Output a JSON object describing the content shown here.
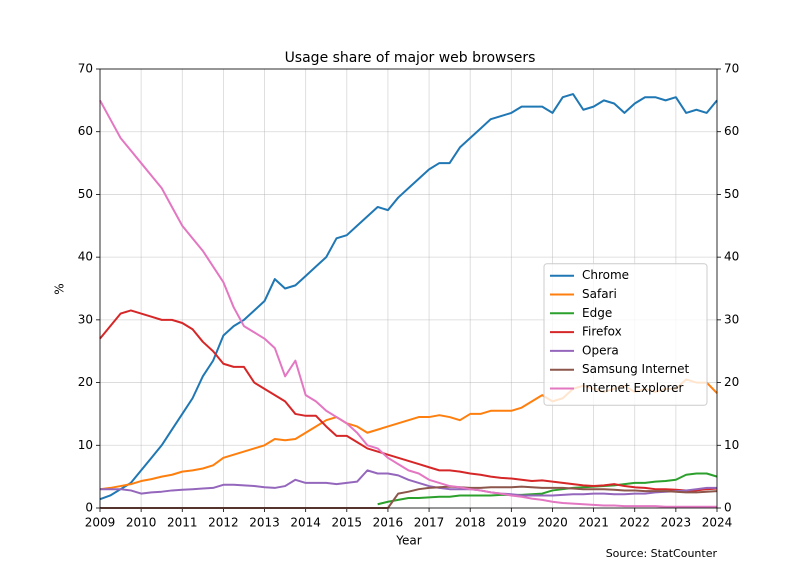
{
  "chart_data": {
    "type": "line",
    "title": "Usage share of major web browsers",
    "xlabel": "Year",
    "ylabel": "%",
    "source": "Source: StatCounter",
    "x": [
      2009,
      2009.25,
      2009.5,
      2009.75,
      2010,
      2010.25,
      2010.5,
      2010.75,
      2011,
      2011.25,
      2011.5,
      2011.75,
      2012,
      2012.25,
      2012.5,
      2012.75,
      2013,
      2013.25,
      2013.5,
      2013.75,
      2014,
      2014.25,
      2014.5,
      2014.75,
      2015,
      2015.25,
      2015.5,
      2015.75,
      2016,
      2016.25,
      2016.5,
      2016.75,
      2017,
      2017.25,
      2017.5,
      2017.75,
      2018,
      2018.25,
      2018.5,
      2018.75,
      2019,
      2019.25,
      2019.5,
      2019.75,
      2020,
      2020.25,
      2020.5,
      2020.75,
      2021,
      2021.25,
      2021.5,
      2021.75,
      2022,
      2022.25,
      2022.5,
      2022.75,
      2023,
      2023.25,
      2023.5,
      2023.75,
      2024
    ],
    "series": [
      {
        "name": "Chrome",
        "color": "#1f77b4",
        "values": [
          1.4,
          2,
          3,
          4,
          6,
          8,
          10,
          12.5,
          15,
          17.5,
          21,
          23.5,
          27.5,
          29,
          30,
          31.5,
          33,
          36.5,
          35,
          35.5,
          37,
          38.5,
          40,
          43,
          43.5,
          45,
          46.5,
          48,
          47.5,
          49.5,
          51,
          52.5,
          54,
          55,
          55,
          57.5,
          59,
          60.5,
          62,
          62.5,
          63,
          64,
          64,
          64,
          63,
          65.5,
          66,
          63.5,
          64,
          65,
          64.5,
          63,
          64.5,
          65.5,
          65.5,
          65,
          65.5,
          63,
          63.5,
          63,
          65
        ]
      },
      {
        "name": "Safari",
        "color": "#ff7f0e",
        "values": [
          3,
          3.2,
          3.5,
          3.8,
          4.3,
          4.6,
          5,
          5.3,
          5.8,
          6,
          6.3,
          6.8,
          8,
          8.5,
          9,
          9.5,
          10,
          11,
          10.8,
          11,
          12,
          13,
          14,
          14.5,
          13.5,
          13,
          12,
          12.5,
          13,
          13.5,
          14,
          14.5,
          14.5,
          14.8,
          14.5,
          14,
          15,
          15,
          15.5,
          15.5,
          15.5,
          16,
          17,
          18,
          17,
          17.5,
          19,
          19.5,
          19,
          18.5,
          19,
          19.5,
          18.5,
          19,
          18.5,
          19,
          19,
          20.5,
          20,
          20,
          18.3
        ]
      },
      {
        "name": "Edge",
        "color": "#2ca02c",
        "values": [
          null,
          null,
          null,
          null,
          null,
          null,
          null,
          null,
          null,
          null,
          null,
          null,
          null,
          null,
          null,
          null,
          null,
          null,
          null,
          null,
          null,
          null,
          null,
          null,
          null,
          null,
          null,
          0.6,
          1.0,
          1.3,
          1.6,
          1.6,
          1.7,
          1.8,
          1.8,
          2.0,
          2.0,
          2.0,
          2.0,
          2.1,
          2.1,
          2.1,
          2.2,
          2.3,
          2.8,
          3.0,
          3.2,
          3.3,
          3.4,
          3.5,
          3.6,
          3.8,
          4.0,
          4.0,
          4.2,
          4.3,
          4.5,
          5.3,
          5.5,
          5.5,
          5.0
        ]
      },
      {
        "name": "Firefox",
        "color": "#d62728",
        "values": [
          27,
          29,
          31,
          31.5,
          31,
          30.5,
          30,
          30,
          29.5,
          28.5,
          26.5,
          25,
          23,
          22.5,
          22.5,
          20,
          19,
          18,
          17,
          15,
          14.7,
          14.7,
          13,
          11.5,
          11.5,
          10.5,
          9.5,
          9,
          8.5,
          8,
          7.5,
          7,
          6.5,
          6,
          6,
          5.8,
          5.5,
          5.3,
          5,
          4.8,
          4.7,
          4.5,
          4.3,
          4.4,
          4.2,
          4.0,
          3.8,
          3.6,
          3.5,
          3.6,
          3.8,
          3.5,
          3.3,
          3.2,
          3.0,
          3.0,
          2.9,
          2.8,
          2.8,
          3.0,
          3.1
        ]
      },
      {
        "name": "Opera",
        "color": "#9467bd",
        "values": [
          3,
          3,
          3,
          2.8,
          2.3,
          2.5,
          2.6,
          2.8,
          2.9,
          3,
          3.1,
          3.2,
          3.7,
          3.7,
          3.6,
          3.5,
          3.3,
          3.2,
          3.5,
          4.5,
          4,
          4,
          4,
          3.8,
          4.0,
          4.2,
          6,
          5.5,
          5.5,
          5.2,
          4.5,
          4,
          3.5,
          3.2,
          3.0,
          3.0,
          3.0,
          2.8,
          2.5,
          2.3,
          2.2,
          2.0,
          2.0,
          2.0,
          2.0,
          2.1,
          2.2,
          2.2,
          2.3,
          2.3,
          2.2,
          2.2,
          2.3,
          2.3,
          2.5,
          2.6,
          2.7,
          2.8,
          3.0,
          3.2,
          3.2
        ]
      },
      {
        "name": "Samsung Internet",
        "color": "#8c564b",
        "values": [
          0,
          0,
          0,
          0,
          0,
          0,
          0,
          0,
          0,
          0,
          0,
          0,
          0,
          0,
          0,
          0,
          0,
          0,
          0,
          0,
          0,
          0,
          0,
          0,
          0,
          0,
          0,
          0,
          0,
          2.3,
          2.6,
          3.0,
          3.2,
          3.3,
          3.4,
          3.3,
          3.2,
          3.2,
          3.3,
          3.3,
          3.3,
          3.4,
          3.3,
          3.2,
          3.2,
          3.2,
          3.1,
          3.0,
          3.0,
          3.0,
          2.9,
          2.8,
          2.8,
          2.7,
          2.7,
          2.7,
          2.6,
          2.5,
          2.5,
          2.6,
          2.7
        ]
      },
      {
        "name": "Internet Explorer",
        "color": "#e377c2",
        "values": [
          65,
          62,
          59,
          57,
          55,
          53,
          51,
          48,
          45,
          43,
          41,
          38.5,
          36,
          32,
          29,
          28,
          27,
          25.5,
          21,
          23.5,
          18,
          17,
          15.5,
          14.5,
          13.5,
          12,
          10,
          9.5,
          8,
          7,
          6,
          5.5,
          4.5,
          4,
          3.5,
          3.3,
          3,
          2.8,
          2.5,
          2.3,
          2,
          1.8,
          1.5,
          1.3,
          1,
          0.8,
          0.7,
          0.6,
          0.5,
          0.4,
          0.4,
          0.3,
          0.3,
          0.3,
          0.3,
          0.2,
          0.2,
          0.2,
          0.2,
          0.2,
          0.2
        ]
      }
    ],
    "xlim": [
      2009,
      2024
    ],
    "xticks": [
      2009,
      2010,
      2011,
      2012,
      2013,
      2014,
      2015,
      2016,
      2017,
      2018,
      2019,
      2020,
      2021,
      2022,
      2023,
      2024
    ],
    "ylim": [
      0,
      70
    ],
    "yticks": [
      0,
      10,
      20,
      30,
      40,
      50,
      60,
      70
    ],
    "y2lim": [
      0,
      70
    ],
    "y2ticks": [
      0,
      10,
      20,
      30,
      40,
      50,
      60,
      70
    ],
    "grid": true,
    "legend": "center right"
  }
}
